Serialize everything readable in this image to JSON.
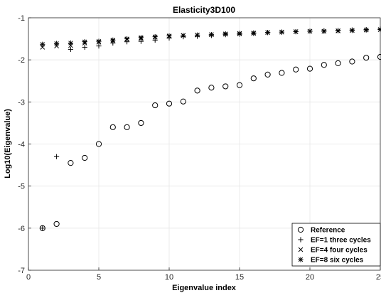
{
  "chart_data": {
    "type": "scatter",
    "title": "Elasticity3D100",
    "xlabel": "Eigenvalue index",
    "ylabel": "Log10(Eigenvalue)",
    "xlim": [
      0,
      25
    ],
    "ylim": [
      -7,
      -1
    ],
    "x_ticks": [
      "0",
      "5",
      "10",
      "15",
      "20",
      "25"
    ],
    "y_ticks": [
      "-1",
      "-2",
      "-3",
      "-4",
      "-5",
      "-6",
      "-7"
    ],
    "grid": true,
    "legend_position": "bottom-right",
    "series": [
      {
        "name": "Reference",
        "marker": "circle",
        "x": [
          1,
          2,
          3,
          4,
          5,
          6,
          7,
          8,
          9,
          10,
          11,
          12,
          13,
          14,
          15,
          16,
          17,
          18,
          19,
          20,
          21,
          22,
          23,
          24,
          25
        ],
        "y": [
          -6.0,
          -5.9,
          -4.45,
          -4.33,
          -4.0,
          -3.6,
          -3.6,
          -3.5,
          -3.08,
          -3.04,
          -2.99,
          -2.73,
          -2.66,
          -2.63,
          -2.6,
          -2.44,
          -2.35,
          -2.31,
          -2.23,
          -2.21,
          -2.12,
          -2.08,
          -2.04,
          -1.95,
          -1.93
        ]
      },
      {
        "name": "EF=1 three cycles",
        "marker": "plus",
        "x": [
          1,
          2,
          3,
          4,
          5,
          6,
          7,
          8,
          9,
          10,
          11,
          12,
          13,
          14,
          15,
          16,
          17,
          18,
          19,
          20,
          21,
          22,
          23,
          24,
          25
        ],
        "y": [
          -6.0,
          -4.3,
          -1.75,
          -1.7,
          -1.67,
          -1.6,
          -1.57,
          -1.56,
          -1.53,
          -1.48,
          -1.45,
          -1.44,
          -1.42,
          -1.4,
          -1.39,
          -1.37,
          -1.35,
          -1.34,
          -1.33,
          -1.32,
          -1.31,
          -1.3,
          -1.29,
          -1.28,
          -1.27
        ]
      },
      {
        "name": "EF=4 four cycles",
        "marker": "x",
        "x": [
          1,
          2,
          3,
          4,
          5,
          6,
          7,
          8,
          9,
          10,
          11,
          12,
          13,
          14,
          15,
          16,
          17,
          18,
          19,
          20,
          21,
          22,
          23,
          24,
          25
        ],
        "y": [
          -1.7,
          -1.67,
          -1.66,
          -1.6,
          -1.58,
          -1.55,
          -1.51,
          -1.49,
          -1.46,
          -1.44,
          -1.42,
          -1.41,
          -1.4,
          -1.39,
          -1.38,
          -1.37,
          -1.35,
          -1.34,
          -1.33,
          -1.32,
          -1.32,
          -1.31,
          -1.3,
          -1.29,
          -1.28
        ]
      },
      {
        "name": "EF=8 six cycles",
        "marker": "star",
        "x": [
          1,
          2,
          3,
          4,
          5,
          6,
          7,
          8,
          9,
          10,
          11,
          12,
          13,
          14,
          15,
          16,
          17,
          18,
          19,
          20,
          21,
          22,
          23,
          24,
          25
        ],
        "y": [
          -1.63,
          -1.61,
          -1.6,
          -1.57,
          -1.56,
          -1.53,
          -1.5,
          -1.47,
          -1.45,
          -1.43,
          -1.42,
          -1.41,
          -1.4,
          -1.38,
          -1.37,
          -1.36,
          -1.35,
          -1.34,
          -1.33,
          -1.32,
          -1.32,
          -1.31,
          -1.3,
          -1.29,
          -1.28
        ]
      }
    ]
  }
}
